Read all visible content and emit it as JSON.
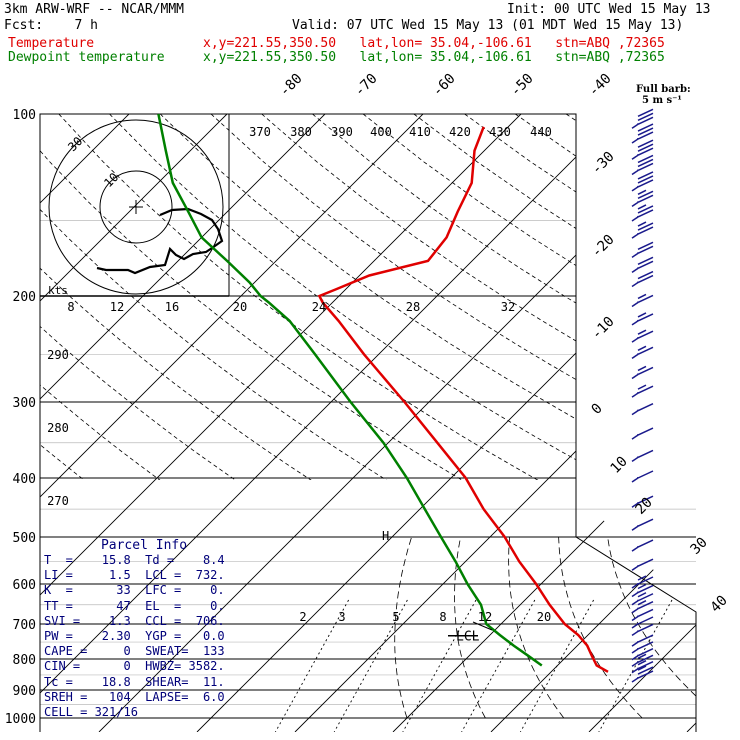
{
  "header": {
    "line1_left": "3km ARW-WRF -- NCAR/MMM",
    "line1_right": "Init: 00 UTC Wed 15 May 13",
    "line2_left": "Fcst:    7 h",
    "line2_right": "Valid: 07 UTC Wed 15 May 13 (01 MDT Wed 15 May 13)",
    "temp_label": "Temperature",
    "temp_loc": "x,y=221.55,350.50   lat,lon= 35.04,-106.61   stn=ABQ ,72365",
    "dew_label": "Dewpoint temperature",
    "dew_loc": "x,y=221.55,350.50   lat,lon= 35.04,-106.61   stn=ABQ ,72365"
  },
  "barb_legend": {
    "line1": "Full barb:",
    "line2": "5 m s⁻¹"
  },
  "pressure_labels": [
    "100",
    "200",
    "300",
    "400",
    "500",
    "600",
    "700",
    "800",
    "900",
    "1000"
  ],
  "isotherm_labels": [
    "-80",
    "-70",
    "-60",
    "-50",
    "-40",
    "-30",
    "-20",
    "-10",
    "0",
    "10",
    "20",
    "30",
    "40"
  ],
  "theta_labels": [
    "370",
    "380",
    "390",
    "400",
    "410",
    "420",
    "430",
    "440"
  ],
  "theta_dry_labels": [
    "290",
    "280",
    "270"
  ],
  "mixing_ratio_labels": [
    "2",
    "3",
    "5",
    "8",
    "12",
    "20"
  ],
  "hodograph": {
    "ring_label_outer": "30",
    "ring_label_inner": "10",
    "kts_label": "kts",
    "speed_labels": [
      "8",
      "12",
      "16",
      "20",
      "24",
      "28",
      "32"
    ]
  },
  "markers": {
    "lcl": "LCL",
    "h_mark": "H"
  },
  "parcel_info": {
    "title": "Parcel Info",
    "rows": [
      "T  =    15.8  Td =    8.4",
      "LI =     1.5  LCL =  732.",
      "K  =      33  LFC =    0.",
      "TT =      47  EL  =    0.",
      "SVI =    1.3  CCL =  706.",
      "PW =    2.30  YGP =   0.0",
      "CAPE =     0  SWEAT=  133",
      "CIN =      0  HWBZ= 3582.",
      "Tc =    18.8  SHEAR=  11.",
      "SREH =   104  LAPSE=  6.0",
      "CELL = 321/16"
    ]
  },
  "colors": {
    "temperature": "#e00000",
    "dewpoint": "#008000",
    "wind": "#1a1a8c",
    "parcel_text": "#00007a",
    "grid": "#000000"
  },
  "chart_data": {
    "type": "line",
    "title": "",
    "xlabel": "",
    "ylabel": "",
    "y_scale": "log-pressure",
    "ylim": [
      1000,
      100
    ],
    "series": [
      {
        "name": "Temperature",
        "pressure_hPa": [
          840,
          820,
          790,
          760,
          730,
          700,
          650,
          600,
          550,
          500,
          450,
          400,
          350,
          300,
          250,
          220,
          205,
          200,
          195,
          185,
          175,
          160,
          145,
          130,
          115,
          105
        ],
        "temperature_C": [
          15.8,
          14.0,
          12.5,
          11.0,
          9.0,
          6.5,
          3.0,
          -0.5,
          -4.5,
          -8.5,
          -13.5,
          -18.5,
          -25.0,
          -32.5,
          -41.5,
          -47.5,
          -51.0,
          -52.0,
          -51.0,
          -49.0,
          -44.5,
          -45.0,
          -46.5,
          -48.0,
          -51.0,
          -52.5
        ]
      },
      {
        "name": "Dewpoint temperature",
        "pressure_hPa": [
          820,
          790,
          760,
          730,
          700,
          650,
          600,
          550,
          500,
          450,
          400,
          350,
          300,
          250,
          220,
          205,
          200,
          190,
          175,
          160,
          145,
          130,
          115,
          100
        ],
        "dewpoint_C": [
          8.4,
          6.0,
          3.5,
          1.0,
          -1.5,
          -4.0,
          -7.5,
          -11.0,
          -15.0,
          -19.5,
          -24.5,
          -30.5,
          -38.0,
          -46.5,
          -52.5,
          -56.5,
          -58.0,
          -60.5,
          -65.0,
          -70.0,
          -74.0,
          -78.5,
          -82.5,
          -87.0
        ]
      }
    ],
    "wind_barbs_kts": [
      {
        "p": 860,
        "speed": 25
      },
      {
        "p": 830,
        "speed": 15
      },
      {
        "p": 810,
        "speed": 15
      },
      {
        "p": 790,
        "speed": 10
      },
      {
        "p": 770,
        "speed": 10
      },
      {
        "p": 750,
        "speed": 10
      },
      {
        "p": 720,
        "speed": 10
      },
      {
        "p": 700,
        "speed": 10
      },
      {
        "p": 680,
        "speed": 10
      },
      {
        "p": 660,
        "speed": 15
      },
      {
        "p": 640,
        "speed": 15
      },
      {
        "p": 620,
        "speed": 15
      },
      {
        "p": 600,
        "speed": 15
      },
      {
        "p": 560,
        "speed": 10
      },
      {
        "p": 520,
        "speed": 10
      },
      {
        "p": 480,
        "speed": 10
      },
      {
        "p": 440,
        "speed": 10
      },
      {
        "p": 400,
        "speed": 10
      },
      {
        "p": 370,
        "speed": 10
      },
      {
        "p": 340,
        "speed": 10
      },
      {
        "p": 310,
        "speed": 10
      },
      {
        "p": 290,
        "speed": 15
      },
      {
        "p": 270,
        "speed": 15
      },
      {
        "p": 250,
        "speed": 15
      },
      {
        "p": 235,
        "speed": 15
      },
      {
        "p": 220,
        "speed": 15
      },
      {
        "p": 205,
        "speed": 15
      },
      {
        "p": 190,
        "speed": 20
      },
      {
        "p": 180,
        "speed": 20
      },
      {
        "p": 170,
        "speed": 20
      },
      {
        "p": 158,
        "speed": 25
      },
      {
        "p": 148,
        "speed": 25
      },
      {
        "p": 140,
        "speed": 25
      },
      {
        "p": 132,
        "speed": 30
      },
      {
        "p": 124,
        "speed": 30
      },
      {
        "p": 117,
        "speed": 30
      },
      {
        "p": 110,
        "speed": 30
      },
      {
        "p": 104,
        "speed": 30
      }
    ]
  }
}
